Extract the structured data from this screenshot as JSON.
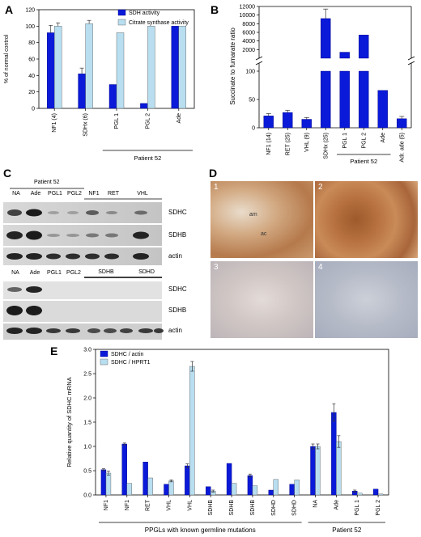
{
  "panels": {
    "A": "A",
    "B": "B",
    "C": "C",
    "D": "D",
    "E": "E"
  },
  "colors": {
    "dark": "#0a1ad8",
    "light": "#b8def0",
    "darkEdge": "#000080",
    "lightEdge": "#555555"
  },
  "chart_data": [
    {
      "id": "A",
      "type": "bar",
      "ylabel": "% of normal control",
      "ylim": [
        0,
        120
      ],
      "yticks": [
        0,
        20,
        40,
        60,
        80,
        100,
        120
      ],
      "categories": [
        "NF1 (4)",
        "SDHx (6)",
        "PGL 1",
        "PGL 2",
        "Ade"
      ],
      "group_label": "Patient 52",
      "series": [
        {
          "name": "SDH activity",
          "values": [
            92,
            42,
            29,
            6,
            100
          ],
          "errors": [
            9,
            7,
            0,
            0,
            0
          ]
        },
        {
          "name": "Citrate synthase activity",
          "values": [
            100,
            103,
            92,
            100,
            100
          ],
          "errors": [
            4,
            4,
            0,
            0,
            0
          ]
        }
      ],
      "legend": "top-right"
    },
    {
      "id": "B",
      "type": "bar",
      "broken_axis": true,
      "ylabel": "Succinate to fumarate ratio",
      "yticks_lower": [
        0,
        50,
        100
      ],
      "yticks_upper": [
        2000,
        4000,
        6000,
        8000,
        10000,
        12000
      ],
      "categories": [
        "NF1 (14)",
        "RET (25)",
        "VHL (9)",
        "SDHx (25)",
        "PGL 1",
        "PGL 2",
        "Ade",
        "Adr. ade (5)"
      ],
      "group_label": "Patient 52",
      "values": [
        21,
        27,
        15,
        9200,
        1400,
        5400,
        66,
        16
      ],
      "errors": [
        4,
        4,
        3,
        2200,
        0,
        0,
        0,
        4
      ]
    },
    {
      "id": "E",
      "type": "bar",
      "ylabel": "Relative quantity of SDHC mRNA",
      "ylim": [
        0,
        3.0
      ],
      "yticks": [
        "0.0",
        "0.5",
        "1.0",
        "1.5",
        "2.0",
        "2.5",
        "3.0"
      ],
      "categories": [
        "NF1",
        "NF1",
        "RET",
        "VHL",
        "VHL",
        "SDHB",
        "SDHB",
        "SDHB",
        "SDHD",
        "SDHD",
        "NA",
        "Ade",
        "PGL 1",
        "PGL 2"
      ],
      "group1_label": "PPGLs with known germline mutations",
      "group2_label": "Patient 52",
      "series": [
        {
          "name": "SDHC / actin",
          "values": [
            0.52,
            1.05,
            0.68,
            0.22,
            0.6,
            0.17,
            0.65,
            0.4,
            0.1,
            0.22,
            1.0,
            1.7,
            0.08,
            0.12
          ],
          "errors": [
            0.02,
            0.02,
            0,
            0,
            0.04,
            0,
            0,
            0.03,
            0,
            0,
            0.05,
            0.18,
            0.02,
            0
          ]
        },
        {
          "name": "SDHC / HPRT1",
          "values": [
            0.45,
            0.24,
            0.35,
            0.29,
            2.65,
            0.08,
            0.24,
            0.19,
            0.32,
            0.31,
            1.0,
            1.1,
            0.04,
            0.02
          ],
          "errors": [
            0.04,
            0,
            0,
            0.02,
            0.1,
            0.02,
            0,
            0,
            0,
            0,
            0.05,
            0.12,
            0,
            0
          ]
        }
      ],
      "legend": "top-left"
    }
  ],
  "blots": {
    "top_header": "Patient 52",
    "top_lanes": [
      "NA",
      "Ade",
      "PGL1",
      "PGL2",
      "NF1",
      "RET",
      "VHL"
    ],
    "top_rows": [
      "SDHC",
      "SDHB",
      "actin"
    ],
    "bottom_lanes": [
      "NA",
      "Ade",
      "PGL1",
      "PGL2",
      "SDHB",
      "SDHD"
    ],
    "bottom_rows": [
      "SDHC",
      "SDHB",
      "actin"
    ]
  },
  "histology": {
    "n1": "1",
    "n2": "2",
    "n3": "3",
    "n4": "4",
    "am": "am",
    "ac": "ac"
  }
}
